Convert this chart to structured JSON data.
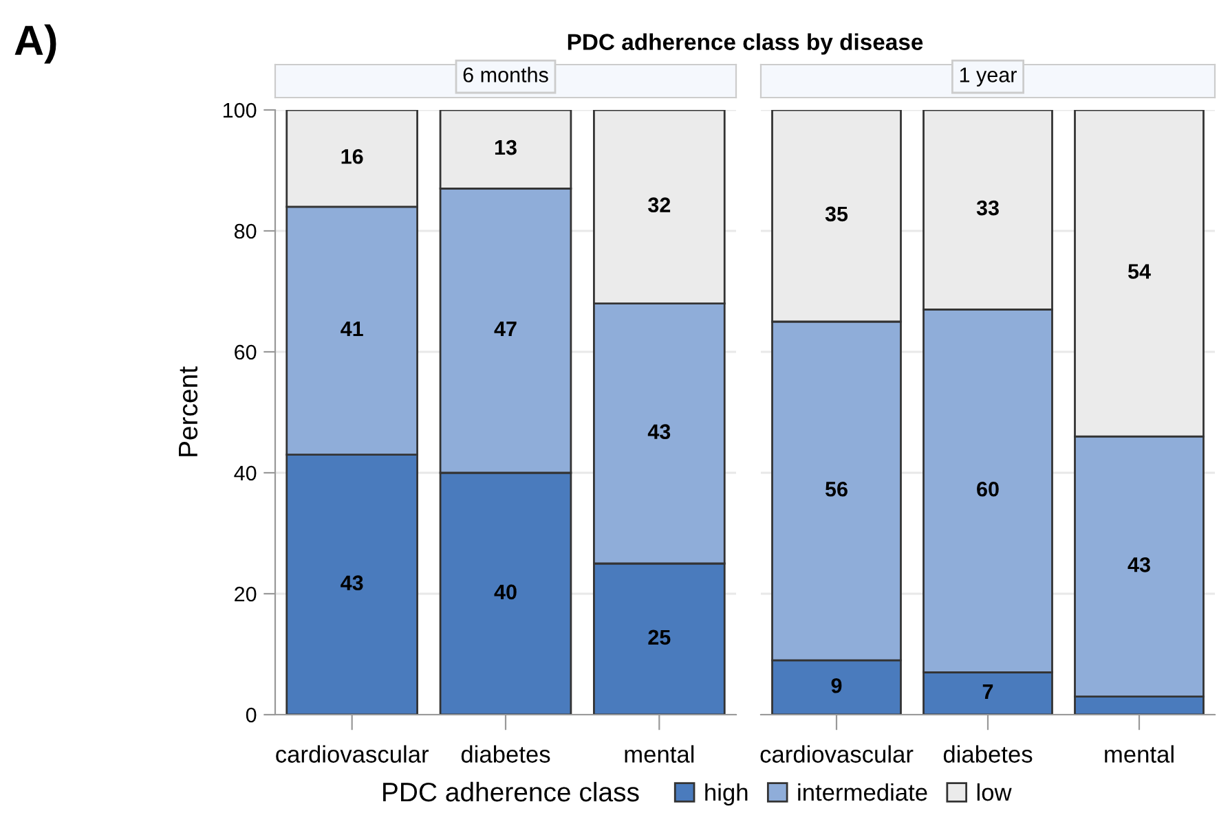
{
  "chart_data": [
    {
      "type": "bar",
      "title": "PDC adherence class by disease",
      "subtitle": "6 months",
      "ylabel": "Percent",
      "annotations": [
        "A)"
      ],
      "stacked": true,
      "categories": [
        "cardiovascular",
        "diabetes",
        "mental"
      ],
      "ylim": [
        0,
        100
      ],
      "yticks": [
        0,
        20,
        40,
        60,
        80,
        100
      ],
      "grid": "y",
      "legend": "bottom",
      "legend_title": "PDC adherence class",
      "series": [
        {
          "name": "high",
          "color": "#4a7bbd",
          "values": [
            43,
            40,
            25
          ],
          "value_labels": [
            "43",
            "40",
            "25"
          ]
        },
        {
          "name": "intermediate",
          "color": "#8fadd9",
          "values": [
            41,
            47,
            43
          ],
          "value_labels": [
            "41",
            "47",
            "43"
          ]
        },
        {
          "name": "low",
          "color": "#ebebeb",
          "values": [
            16,
            13,
            32
          ],
          "value_labels": [
            "16",
            "13",
            "32"
          ]
        }
      ]
    },
    {
      "type": "bar",
      "subtitle": "1 year",
      "stacked": true,
      "categories": [
        "cardiovascular",
        "diabetes",
        "mental"
      ],
      "ylim": [
        0,
        100
      ],
      "yticks": [
        0,
        20,
        40,
        60,
        80,
        100
      ],
      "tick_labels": "x",
      "grid": "y",
      "series": [
        {
          "color": "#4a7bbd",
          "values": [
            9,
            7,
            3
          ],
          "value_labels": [
            "9",
            "7",
            null
          ]
        },
        {
          "color": "#8fadd9",
          "values": [
            56,
            60,
            43
          ],
          "value_labels": [
            "56",
            "60",
            "43"
          ]
        },
        {
          "color": "#ebebeb",
          "values": [
            35,
            33,
            54
          ],
          "value_labels": [
            "35",
            "33",
            "54"
          ]
        }
      ]
    }
  ]
}
